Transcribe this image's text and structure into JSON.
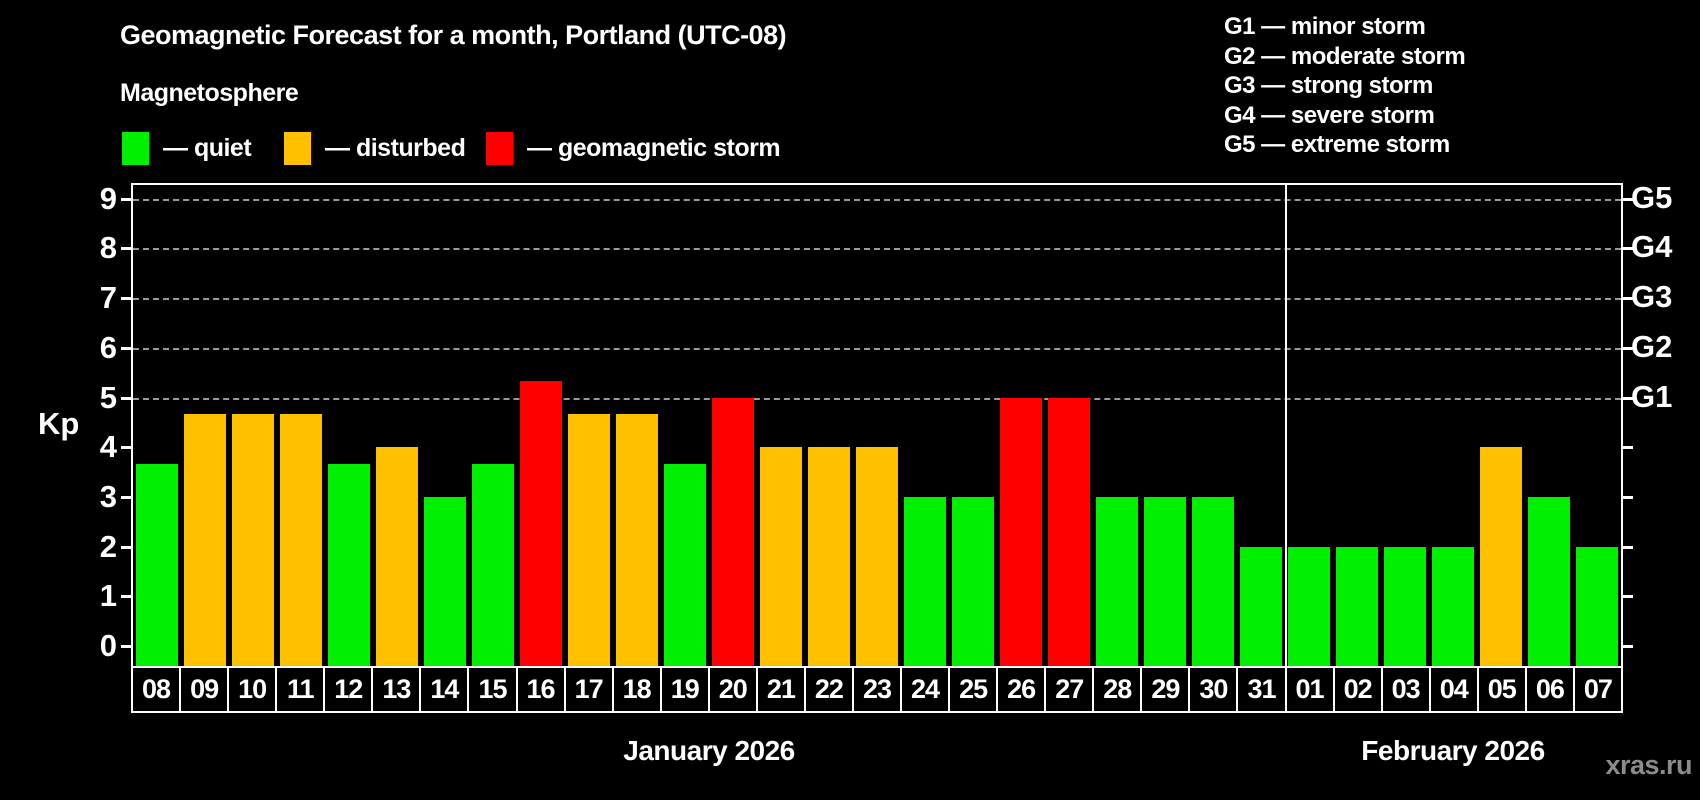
{
  "title": "Geomagnetic Forecast for a month, Portland (UTC-08)",
  "subtitle": "Magnetosphere",
  "watermark": "xras.ru",
  "colors": {
    "quiet": "#00ee00",
    "disturbed": "#ffc000",
    "storm": "#ff0000",
    "background": "#000000",
    "grid": "#9a9a9a",
    "text": "#ffffff",
    "watermark": "#8c8c8c"
  },
  "legend": {
    "items": [
      {
        "key": "quiet",
        "label": "— quiet"
      },
      {
        "key": "disturbed",
        "label": "— disturbed"
      },
      {
        "key": "storm",
        "label": "— geomagnetic storm"
      }
    ]
  },
  "g_legend": [
    "G1 — minor storm",
    "G2 — moderate storm",
    "G3 — strong storm",
    "G4 — severe storm",
    "G5 — extreme storm"
  ],
  "axes": {
    "y_label": "Kp",
    "y_ticks": [
      0,
      1,
      2,
      3,
      4,
      5,
      6,
      7,
      8,
      9
    ],
    "g_ticks": [
      {
        "kp": 5,
        "label": "G1"
      },
      {
        "kp": 6,
        "label": "G2"
      },
      {
        "kp": 7,
        "label": "G3"
      },
      {
        "kp": 8,
        "label": "G4"
      },
      {
        "kp": 9,
        "label": "G5"
      }
    ]
  },
  "chart_data": {
    "type": "bar",
    "title": "Geomagnetic Forecast for a month, Portland (UTC-08)",
    "ylabel": "Kp",
    "ylim": [
      0,
      9.35
    ],
    "grid": "dashed horizontal lines at Kp 5-9 only",
    "legend_position": "top-left",
    "categories": [
      "08",
      "09",
      "10",
      "11",
      "12",
      "13",
      "14",
      "15",
      "16",
      "17",
      "18",
      "19",
      "20",
      "21",
      "22",
      "23",
      "24",
      "25",
      "26",
      "27",
      "28",
      "29",
      "30",
      "31",
      "01",
      "02",
      "03",
      "04",
      "05",
      "06",
      "07"
    ],
    "values": [
      3.67,
      4.67,
      4.67,
      4.67,
      3.67,
      4,
      3,
      3.67,
      5.33,
      4.67,
      4.67,
      3.67,
      5,
      4,
      4,
      4,
      3,
      3,
      5,
      5,
      3,
      3,
      3,
      2,
      2,
      2,
      2,
      2,
      4,
      3,
      2
    ],
    "statuses": [
      "quiet",
      "disturbed",
      "disturbed",
      "disturbed",
      "quiet",
      "disturbed",
      "quiet",
      "quiet",
      "storm",
      "disturbed",
      "disturbed",
      "quiet",
      "storm",
      "disturbed",
      "disturbed",
      "disturbed",
      "quiet",
      "quiet",
      "storm",
      "storm",
      "quiet",
      "quiet",
      "quiet",
      "quiet",
      "quiet",
      "quiet",
      "quiet",
      "quiet",
      "disturbed",
      "quiet",
      "quiet"
    ],
    "months": [
      {
        "label": "January 2026",
        "days": 24
      },
      {
        "label": "February 2026",
        "days": 7
      }
    ]
  }
}
